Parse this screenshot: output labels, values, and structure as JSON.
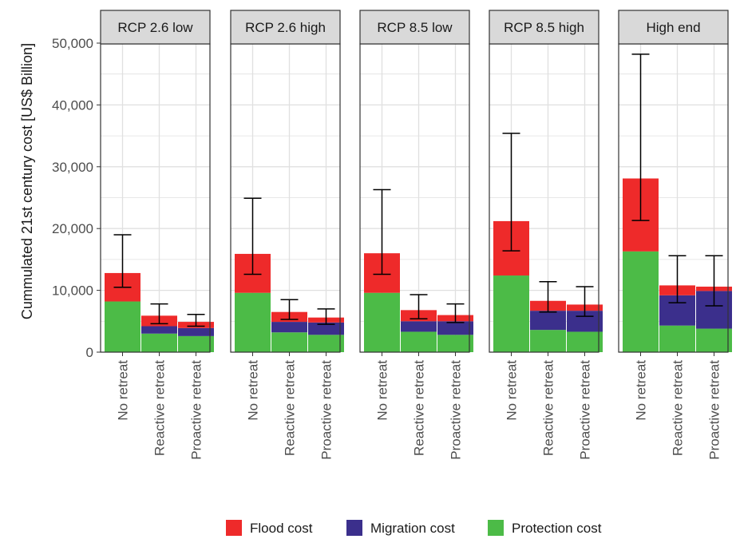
{
  "chart_data": {
    "type": "bar",
    "stacked": true,
    "facets": [
      "RCP 2.6 low",
      "RCP 2.6 high",
      "RCP 8.5 low",
      "RCP 8.5 high",
      "High end"
    ],
    "categories": [
      "No retreat",
      "Reactive retreat",
      "Proactive retreat"
    ],
    "ylabel": "Cummulated 21st century cost [US$ Billion]",
    "ylim": [
      0,
      50000
    ],
    "yticks": [
      0,
      10000,
      20000,
      30000,
      40000,
      50000
    ],
    "ytick_labels": [
      "0",
      "10,000",
      "20,000",
      "30,000",
      "40,000",
      "50,000"
    ],
    "grid": true,
    "legend_position": "bottom",
    "series": [
      {
        "name": "Protection cost",
        "color": "#4cbb47",
        "values": [
          [
            8200,
            3000,
            2600
          ],
          [
            9600,
            3200,
            2800
          ],
          [
            9600,
            3300,
            2800
          ],
          [
            12400,
            3600,
            3300
          ],
          [
            16300,
            4300,
            3800
          ]
        ]
      },
      {
        "name": "Migration cost",
        "color": "#3b2f8c",
        "values": [
          [
            0,
            1200,
            1300
          ],
          [
            0,
            1700,
            2000
          ],
          [
            0,
            1700,
            2200
          ],
          [
            0,
            3100,
            3400
          ],
          [
            0,
            4900,
            6100
          ]
        ]
      },
      {
        "name": "Flood cost",
        "color": "#ee2a2a",
        "values": [
          [
            4600,
            1700,
            1000
          ],
          [
            6300,
            1600,
            800
          ],
          [
            6400,
            1800,
            1000
          ],
          [
            8800,
            1600,
            1000
          ],
          [
            11800,
            1600,
            700
          ]
        ]
      }
    ],
    "error_bars": [
      [
        [
          10500,
          19000
        ],
        [
          4600,
          7800
        ],
        [
          4200,
          6100
        ]
      ],
      [
        [
          12600,
          24900
        ],
        [
          5300,
          8500
        ],
        [
          4500,
          7000
        ]
      ],
      [
        [
          12600,
          26300
        ],
        [
          5400,
          9300
        ],
        [
          4800,
          7800
        ]
      ],
      [
        [
          16400,
          35400
        ],
        [
          6500,
          11400
        ],
        [
          5800,
          10600
        ]
      ],
      [
        [
          21300,
          48200
        ],
        [
          8000,
          15600
        ],
        [
          7500,
          15600
        ]
      ]
    ],
    "legend_order": [
      "Flood cost",
      "Migration cost",
      "Protection cost"
    ]
  }
}
